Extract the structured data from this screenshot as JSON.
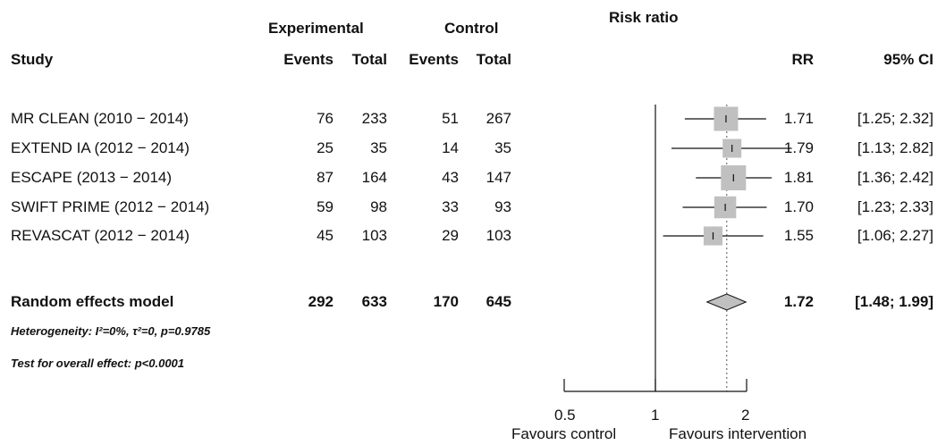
{
  "headers": {
    "experimental": "Experimental",
    "control": "Control",
    "risk_ratio": "Risk ratio",
    "study": "Study",
    "exp_events": "Events",
    "exp_total": "Total",
    "ctl_events": "Events",
    "ctl_total": "Total",
    "rr": "RR",
    "ci": "95% CI"
  },
  "studies": [
    {
      "name": "MR CLEAN (2010 − 2014)",
      "exp_events": "76",
      "exp_total": "233",
      "ctl_events": "51",
      "ctl_total": "267",
      "rr_label": "1.71",
      "ci_label": "[1.25; 2.32]"
    },
    {
      "name": "EXTEND IA (2012 − 2014)",
      "exp_events": "25",
      "exp_total": "35",
      "ctl_events": "14",
      "ctl_total": "35",
      "rr_label": "1.79",
      "ci_label": "[1.13; 2.82]"
    },
    {
      "name": "ESCAPE (2013 − 2014)",
      "exp_events": "87",
      "exp_total": "164",
      "ctl_events": "43",
      "ctl_total": "147",
      "rr_label": "1.81",
      "ci_label": "[1.36; 2.42]"
    },
    {
      "name": "SWIFT PRIME (2012 − 2014)",
      "exp_events": "59",
      "exp_total": "98",
      "ctl_events": "33",
      "ctl_total": "93",
      "rr_label": "1.70",
      "ci_label": "[1.23; 2.33]"
    },
    {
      "name": "REVASCAT (2012 − 2014)",
      "exp_events": "45",
      "exp_total": "103",
      "ctl_events": "29",
      "ctl_total": "103",
      "rr_label": "1.55",
      "ci_label": "[1.06; 2.27]"
    }
  ],
  "summary": {
    "name": "Random effects model",
    "exp_events": "292",
    "exp_total": "633",
    "ctl_events": "170",
    "ctl_total": "645",
    "rr_label": "1.72",
    "ci_label": "[1.48; 1.99]"
  },
  "heterogeneity": {
    "prefix": "Heterogeneity: ",
    "i2": "I²=0%, ",
    "tau2": "τ²=0, ",
    "p": "p=0.9785"
  },
  "overall_effect": "Test for overall effect:  p<0.0001",
  "axis": {
    "ticks": [
      "0.5",
      "1",
      "2"
    ],
    "left_label": "Favours control",
    "right_label": "Favours intervention"
  },
  "chart_data": {
    "type": "forest",
    "scale": "log",
    "xlim": [
      0.5,
      2
    ],
    "ticks": [
      0.5,
      1,
      2
    ],
    "reference_line": 1,
    "summary_line": 1.72,
    "colors": {
      "box": "#c0c0c0",
      "diamond": "#c0c0c0",
      "line": "#111111"
    },
    "studies": [
      {
        "name": "MR CLEAN (2010 − 2014)",
        "rr": 1.71,
        "lower": 1.25,
        "upper": 2.32,
        "weight": 29.4
      },
      {
        "name": "EXTEND IA (2012 − 2014)",
        "rr": 1.79,
        "lower": 1.13,
        "upper": 2.82,
        "weight": 8.5
      },
      {
        "name": "ESCAPE (2013 − 2014)",
        "rr": 1.81,
        "lower": 1.36,
        "upper": 2.42,
        "weight": 34.1
      },
      {
        "name": "SWIFT PRIME (2012 − 2014)",
        "rr": 1.7,
        "lower": 1.23,
        "upper": 2.33,
        "weight": 19.2
      },
      {
        "name": "REVASCAT (2012 − 2014)",
        "rr": 1.55,
        "lower": 1.06,
        "upper": 2.27,
        "weight": 8.8
      }
    ],
    "pooled": {
      "rr": 1.72,
      "lower": 1.48,
      "upper": 1.99
    }
  }
}
